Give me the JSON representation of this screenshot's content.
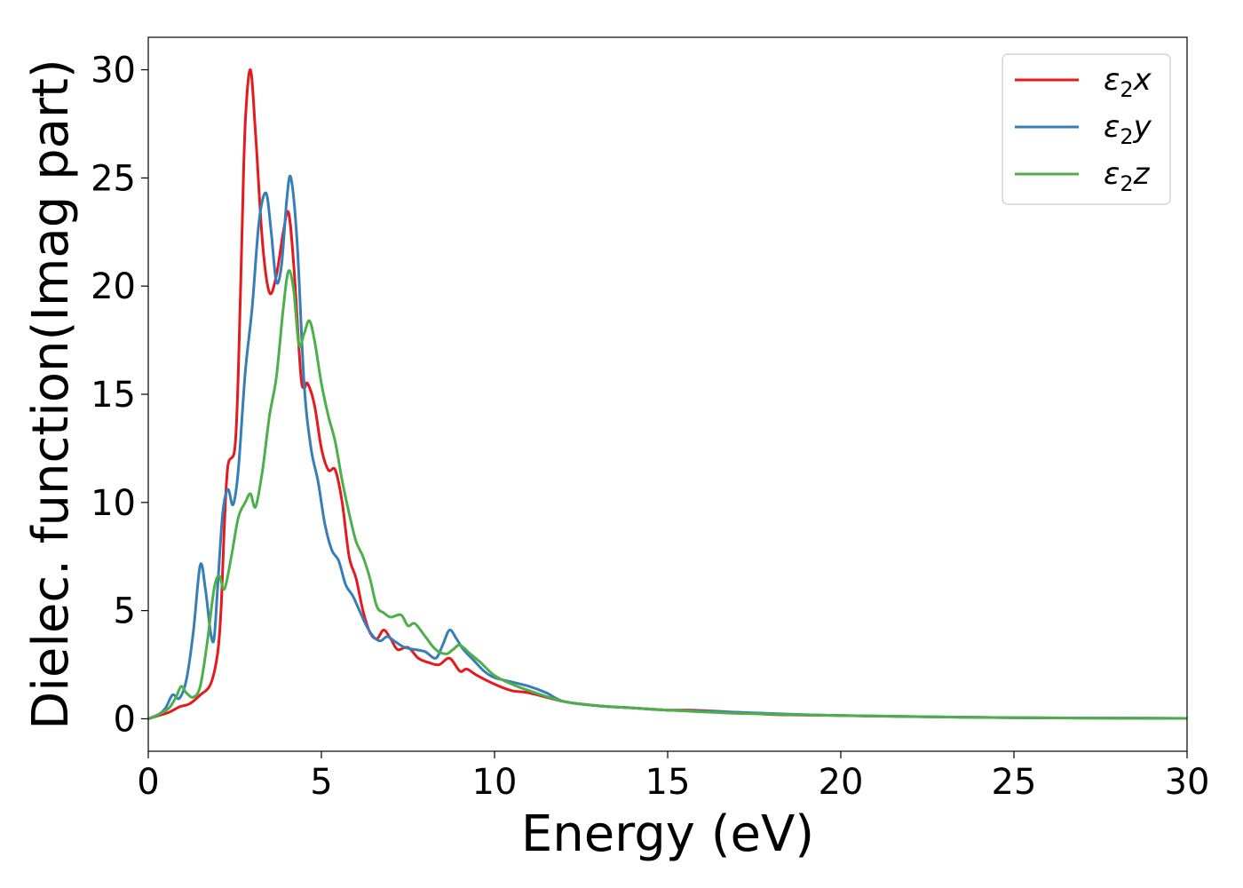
{
  "chart_data": {
    "type": "line",
    "xlabel": "Energy (eV)",
    "ylabel": "Dielec. function(Imag part)",
    "xlim": [
      0,
      30
    ],
    "ylim": [
      -1.5,
      31.5
    ],
    "xticks": [
      0,
      5,
      10,
      15,
      20,
      25,
      30
    ],
    "yticks": [
      0,
      5,
      10,
      15,
      20,
      25,
      30
    ],
    "grid": false,
    "legend_position": "top-right",
    "series": [
      {
        "name": "ε2x",
        "legend_base": "ε",
        "legend_sub": "2",
        "legend_tail": "x",
        "color": "#e41a1c",
        "x": [
          0,
          0.3,
          0.6,
          0.9,
          1.2,
          1.5,
          1.8,
          2.0,
          2.1,
          2.2,
          2.3,
          2.5,
          2.6,
          2.7,
          2.8,
          2.95,
          3.1,
          3.3,
          3.5,
          3.7,
          3.9,
          4.05,
          4.2,
          4.4,
          4.5,
          4.6,
          4.8,
          5.0,
          5.2,
          5.4,
          5.6,
          5.8,
          6.0,
          6.2,
          6.4,
          6.6,
          6.8,
          7.0,
          7.2,
          7.5,
          7.8,
          8.1,
          8.4,
          8.7,
          9.0,
          9.2,
          9.5,
          10.0,
          10.5,
          11.0,
          12.0,
          13.0,
          14.0,
          15.0,
          15.7,
          17.0,
          18.0,
          20.0,
          22.0,
          25.0,
          30.0
        ],
        "y": [
          0,
          0.15,
          0.3,
          0.55,
          0.7,
          1.1,
          1.6,
          3.0,
          5.0,
          9.0,
          11.7,
          12.5,
          16.0,
          22.0,
          27.5,
          30.0,
          27.0,
          22.0,
          19.7,
          20.5,
          22.5,
          23.4,
          21.0,
          16.0,
          15.3,
          15.5,
          14.5,
          12.5,
          11.5,
          11.5,
          10.0,
          7.5,
          6.5,
          5.0,
          4.0,
          3.7,
          4.1,
          3.7,
          3.2,
          3.3,
          2.8,
          2.6,
          2.5,
          2.8,
          2.2,
          2.3,
          2.0,
          1.6,
          1.3,
          1.2,
          0.8,
          0.6,
          0.5,
          0.4,
          0.4,
          0.3,
          0.2,
          0.15,
          0.1,
          0.05,
          0.02
        ]
      },
      {
        "name": "ε2y",
        "legend_base": "ε",
        "legend_sub": "2",
        "legend_tail": "y",
        "color": "#377eb8",
        "x": [
          0,
          0.3,
          0.5,
          0.7,
          0.9,
          1.1,
          1.3,
          1.5,
          1.65,
          1.8,
          1.9,
          2.0,
          2.15,
          2.3,
          2.45,
          2.6,
          2.8,
          3.0,
          3.2,
          3.4,
          3.55,
          3.7,
          3.85,
          4.0,
          4.12,
          4.3,
          4.5,
          4.7,
          4.9,
          5.1,
          5.3,
          5.5,
          5.7,
          5.9,
          6.1,
          6.3,
          6.5,
          6.7,
          6.9,
          7.1,
          7.4,
          7.7,
          8.0,
          8.3,
          8.5,
          8.7,
          8.9,
          9.1,
          9.4,
          9.7,
          10.0,
          10.5,
          11.0,
          11.5,
          12.0,
          13.0,
          14.0,
          15.0,
          17.0,
          20.0,
          25.0,
          30.0
        ],
        "y": [
          0,
          0.2,
          0.5,
          1.1,
          0.95,
          1.8,
          4.0,
          7.1,
          6.0,
          4.0,
          3.7,
          6.0,
          9.5,
          10.6,
          9.9,
          11.5,
          16.0,
          19.0,
          23.0,
          24.3,
          22.5,
          20.2,
          21.0,
          24.0,
          25.0,
          22.0,
          15.5,
          12.5,
          11.0,
          9.0,
          7.8,
          7.3,
          6.2,
          5.7,
          5.0,
          4.3,
          3.8,
          3.6,
          3.8,
          3.6,
          3.3,
          3.2,
          3.1,
          2.8,
          3.4,
          4.1,
          3.7,
          3.2,
          2.7,
          2.2,
          1.9,
          1.7,
          1.5,
          1.2,
          0.8,
          0.6,
          0.5,
          0.4,
          0.3,
          0.15,
          0.05,
          0.02
        ]
      },
      {
        "name": "ε2z",
        "legend_base": "ε",
        "legend_sub": "2",
        "legend_tail": "z",
        "color": "#4daf4a",
        "x": [
          0,
          0.3,
          0.6,
          0.8,
          0.95,
          1.1,
          1.3,
          1.5,
          1.7,
          1.9,
          2.05,
          2.2,
          2.4,
          2.6,
          2.8,
          2.95,
          3.1,
          3.3,
          3.5,
          3.7,
          3.9,
          4.05,
          4.2,
          4.35,
          4.5,
          4.65,
          4.8,
          5.0,
          5.2,
          5.4,
          5.6,
          5.8,
          6.0,
          6.2,
          6.4,
          6.6,
          6.8,
          7.0,
          7.3,
          7.5,
          7.7,
          8.0,
          8.3,
          8.6,
          8.8,
          9.0,
          9.3,
          9.6,
          10.0,
          10.5,
          11.0,
          12.0,
          13.0,
          14.0,
          15.0,
          17.0,
          20.0,
          25.0,
          30.0
        ],
        "y": [
          0,
          0.2,
          0.5,
          1.0,
          1.5,
          1.2,
          1.0,
          1.5,
          3.5,
          6.0,
          6.6,
          6.0,
          7.5,
          9.3,
          10.0,
          10.4,
          9.8,
          11.5,
          14.0,
          15.8,
          19.0,
          20.7,
          19.8,
          17.3,
          17.8,
          18.4,
          17.5,
          15.5,
          14.0,
          12.8,
          11.0,
          9.5,
          8.2,
          7.5,
          6.5,
          5.2,
          4.9,
          4.7,
          4.8,
          4.3,
          4.4,
          3.8,
          3.2,
          3.0,
          3.2,
          3.4,
          3.0,
          2.6,
          2.0,
          1.6,
          1.3,
          0.8,
          0.6,
          0.5,
          0.4,
          0.25,
          0.15,
          0.05,
          0.02
        ]
      }
    ]
  }
}
